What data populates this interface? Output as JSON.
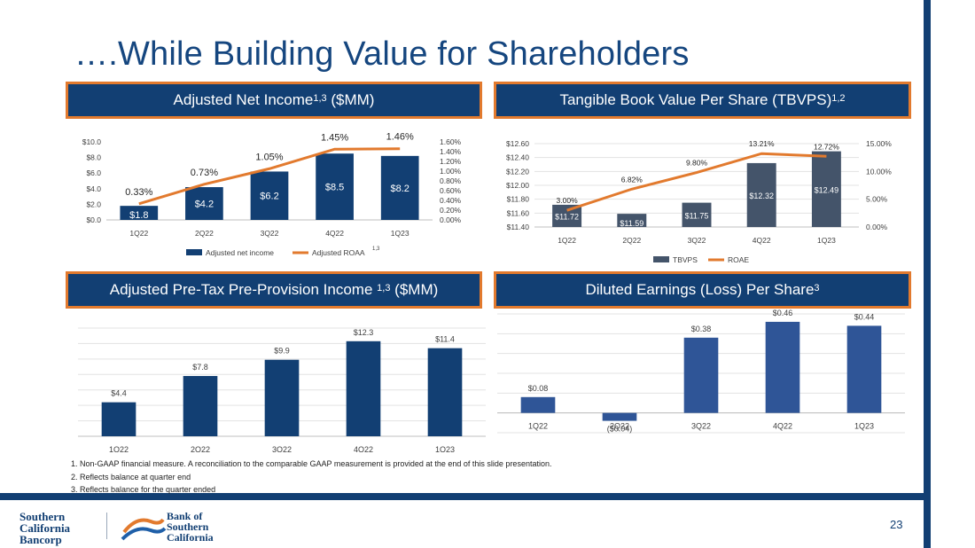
{
  "title": "….While Building Value for Shareholders",
  "sections": {
    "ani": {
      "label": "Adjusted Net Income",
      "sup": "1,3",
      "suffix": " ($MM)"
    },
    "tbvps": {
      "label": "Tangible Book Value Per Share (TBVPS)",
      "sup": "1,2"
    },
    "pptp": {
      "label": "Adjusted Pre-Tax Pre-Provision Income ",
      "sup": "1,3",
      "suffix": " ($MM)"
    },
    "eps": {
      "label": "Diluted Earnings (Loss) Per Share",
      "sup": "3"
    }
  },
  "chart_data": [
    {
      "id": "ani",
      "type": "bar",
      "categories": [
        "1Q22",
        "2Q22",
        "3Q22",
        "4Q22",
        "1Q23"
      ],
      "series": [
        {
          "name": "Adjusted net income",
          "type": "bar",
          "axis": "left",
          "values": [
            1.8,
            4.2,
            6.2,
            8.5,
            8.2
          ],
          "labels": [
            "$1.8",
            "$4.2",
            "$6.2",
            "$8.5",
            "$8.2"
          ]
        },
        {
          "name": "Adjusted ROAA",
          "legend_sup": "1,3",
          "type": "line",
          "axis": "right",
          "values": [
            0.33,
            0.73,
            1.05,
            1.45,
            1.46
          ],
          "labels": [
            "0.33%",
            "0.73%",
            "1.05%",
            "1.45%",
            "1.46%"
          ]
        }
      ],
      "y_left": {
        "range": [
          0,
          10
        ],
        "ticks": [
          "$0.0",
          "$2.0",
          "$4.0",
          "$6.0",
          "$8.0",
          "$10.0"
        ]
      },
      "y_right": {
        "range": [
          0,
          1.6
        ],
        "ticks": [
          "0.00%",
          "0.20%",
          "0.40%",
          "0.60%",
          "0.80%",
          "1.00%",
          "1.20%",
          "1.40%",
          "1.60%"
        ]
      },
      "colors": {
        "bar": "#123f73",
        "line": "#e27a2e"
      }
    },
    {
      "id": "tbvps",
      "type": "bar",
      "categories": [
        "1Q22",
        "2Q22",
        "3Q22",
        "4Q22",
        "1Q23"
      ],
      "series": [
        {
          "name": "TBVPS",
          "type": "bar",
          "axis": "left",
          "values": [
            11.72,
            11.59,
            11.75,
            12.32,
            12.49
          ],
          "labels": [
            "$11.72",
            "$11.59",
            "$11.75",
            "$12.32",
            "$12.49"
          ]
        },
        {
          "name": "ROAE",
          "type": "line",
          "axis": "right",
          "values": [
            3.0,
            6.82,
            9.8,
            13.21,
            12.72
          ],
          "labels": [
            "3.00%",
            "6.82%",
            "9.80%",
            "13.21%",
            "12.72%"
          ]
        }
      ],
      "y_left": {
        "range": [
          11.4,
          12.6
        ],
        "ticks": [
          "$11.40",
          "$11.60",
          "$11.80",
          "$12.00",
          "$12.20",
          "$12.40",
          "$12.60"
        ]
      },
      "y_right": {
        "range": [
          0,
          15
        ],
        "ticks": [
          "0.00%",
          "5.00%",
          "10.00%",
          "15.00%"
        ]
      },
      "colors": {
        "bar": "#44546a",
        "line": "#e27a2e"
      }
    },
    {
      "id": "pptp",
      "type": "bar",
      "categories": [
        "1Q22",
        "2Q22",
        "3Q22",
        "4Q22",
        "1Q23"
      ],
      "series": [
        {
          "name": "Adjusted Pre-Tax Pre-Provision Income",
          "type": "bar",
          "values": [
            4.4,
            7.8,
            9.9,
            12.3,
            11.4
          ],
          "labels": [
            "$4.4",
            "$7.8",
            "$9.9",
            "$12.3",
            "$11.4"
          ]
        }
      ],
      "y_range": [
        0,
        14
      ],
      "colors": {
        "bar": "#123f73"
      }
    },
    {
      "id": "eps",
      "type": "bar",
      "categories": [
        "1Q22",
        "2Q22",
        "3Q22",
        "4Q22",
        "1Q23"
      ],
      "series": [
        {
          "name": "Diluted Earnings (Loss) Per Share",
          "type": "bar",
          "values": [
            0.08,
            -0.04,
            0.38,
            0.46,
            0.44
          ],
          "labels": [
            "$0.08",
            "($0.04)",
            "$0.38",
            "$0.46",
            "$0.44"
          ]
        }
      ],
      "y_range": [
        -0.1,
        0.5
      ],
      "colors": {
        "bar": "#2f5597"
      }
    }
  ],
  "footnotes": [
    "1.   Non-GAAP financial measure. A reconciliation to the comparable GAAP measurement is provided at the end of this slide presentation.",
    "2.   Reflects balance at quarter end",
    "3.   Reflects balance for the quarter ended"
  ],
  "logos": {
    "bancorp": [
      "Southern",
      "California",
      "Bancorp"
    ],
    "bank": [
      "Bank of",
      "Southern",
      "California"
    ]
  },
  "page_number": "23",
  "colors": {
    "navy": "#123f73",
    "orange": "#e27a2e"
  }
}
